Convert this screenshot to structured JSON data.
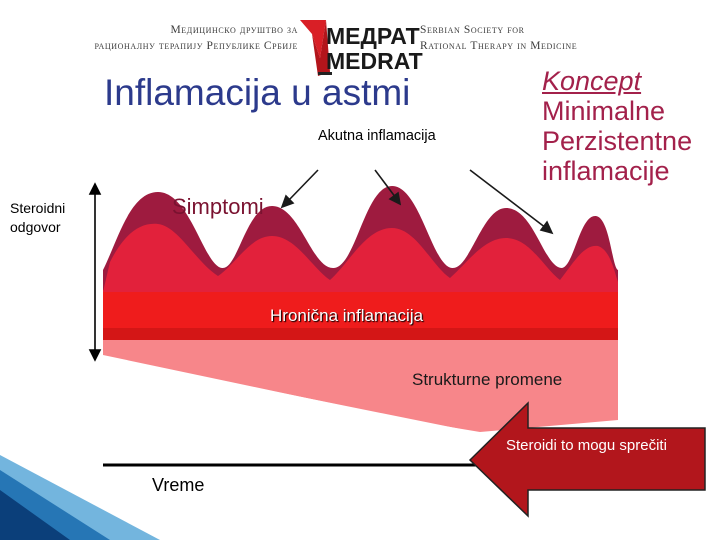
{
  "header": {
    "left_line1": "Медицинско друштво за",
    "left_line2": "рационалну терапију Републике Србије",
    "logo_line1": "МЕДРАТ",
    "logo_line2": "MEDRAT",
    "right_line1": "Serbian Society for",
    "right_line2": "Rational Therapy in Medicine"
  },
  "title": "Inflamacija u astmi",
  "labels": {
    "akutna": "Akutna inflamacija",
    "koncept": "Koncept",
    "minimalne": "Minimalne",
    "perzistentne": "Perzistentne",
    "inflamacije": "inflamacije",
    "steroidni_line1": "Steroidni",
    "steroidni_line2": "odgovor",
    "simptomi": "Simptomi",
    "hronicna": "Hronična inflamacija",
    "strukturne": "Strukturne promene",
    "vreme": "Vreme",
    "prevent": "Steroidi to mogu sprečiti"
  },
  "colors": {
    "title": "#2c3a8c",
    "koncept": "#a3214b",
    "peaks_dark": "#9e1b3f",
    "chronic_red": "#ef1c1c",
    "structural_pink": "#f7868a",
    "prevent_arrow": "#b2161c",
    "logo_red": "#d91f26"
  },
  "icons": {
    "logo": "medrat-logo",
    "corner": "blue-ribbon-decoration"
  }
}
